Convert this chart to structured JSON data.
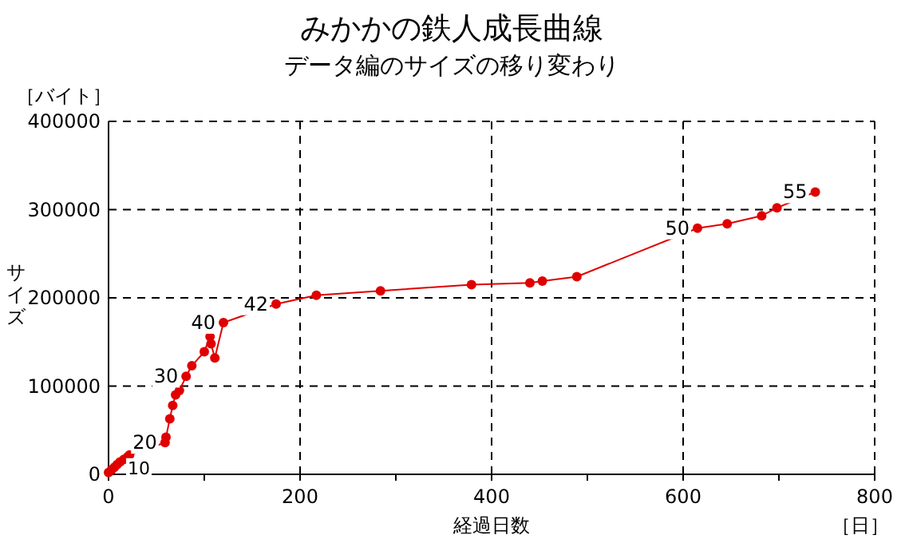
{
  "chart_data": {
    "type": "line",
    "title": "みかかの鉄人成長曲線",
    "subtitle": "データ編のサイズの移り変わり",
    "xlabel": "経過日数",
    "ylabel": "サイズ",
    "annotations": [
      "［バイト］",
      "［日］",
      {
        "text": "10",
        "x": 0,
        "y": 2000
      },
      {
        "text": "20",
        "x": 59,
        "y": 36000
      },
      {
        "text": "30",
        "x": 81,
        "y": 111000
      },
      {
        "text": "40",
        "x": 120,
        "y": 172000
      },
      {
        "text": "42",
        "x": 175,
        "y": 193000
      },
      {
        "text": "50",
        "x": 615,
        "y": 279000
      },
      {
        "text": "55",
        "x": 738,
        "y": 320000
      }
    ],
    "x": [
      0,
      3,
      6,
      9,
      12,
      16,
      20,
      22,
      59,
      60,
      64,
      67,
      70,
      74,
      81,
      87,
      100,
      106,
      107,
      111,
      120,
      175,
      217,
      284,
      379,
      440,
      453,
      489,
      615,
      646,
      682,
      698,
      738
    ],
    "series": [
      {
        "color": "#e00000",
        "values": [
          2000,
          5000,
          8000,
          11000,
          14000,
          17000,
          20000,
          22000,
          36000,
          42000,
          63000,
          78000,
          90000,
          95000,
          111000,
          123000,
          139000,
          156000,
          148000,
          132000,
          172000,
          193000,
          203000,
          208000,
          215000,
          217000,
          219000,
          224000,
          279000,
          284000,
          293000,
          302000,
          320000
        ]
      }
    ],
    "marker": "circle",
    "grid": true,
    "xlim": [
      0,
      800
    ],
    "ylim": [
      0,
      400000
    ],
    "xticks": [
      0,
      {
        "value": 100,
        "label": null
      },
      200,
      {
        "value": 300,
        "label": null
      },
      400,
      {
        "value": 500,
        "label": null
      },
      600,
      {
        "value": 700,
        "label": null
      },
      800
    ],
    "yticks": [
      0,
      100000,
      200000,
      300000,
      400000
    ]
  }
}
